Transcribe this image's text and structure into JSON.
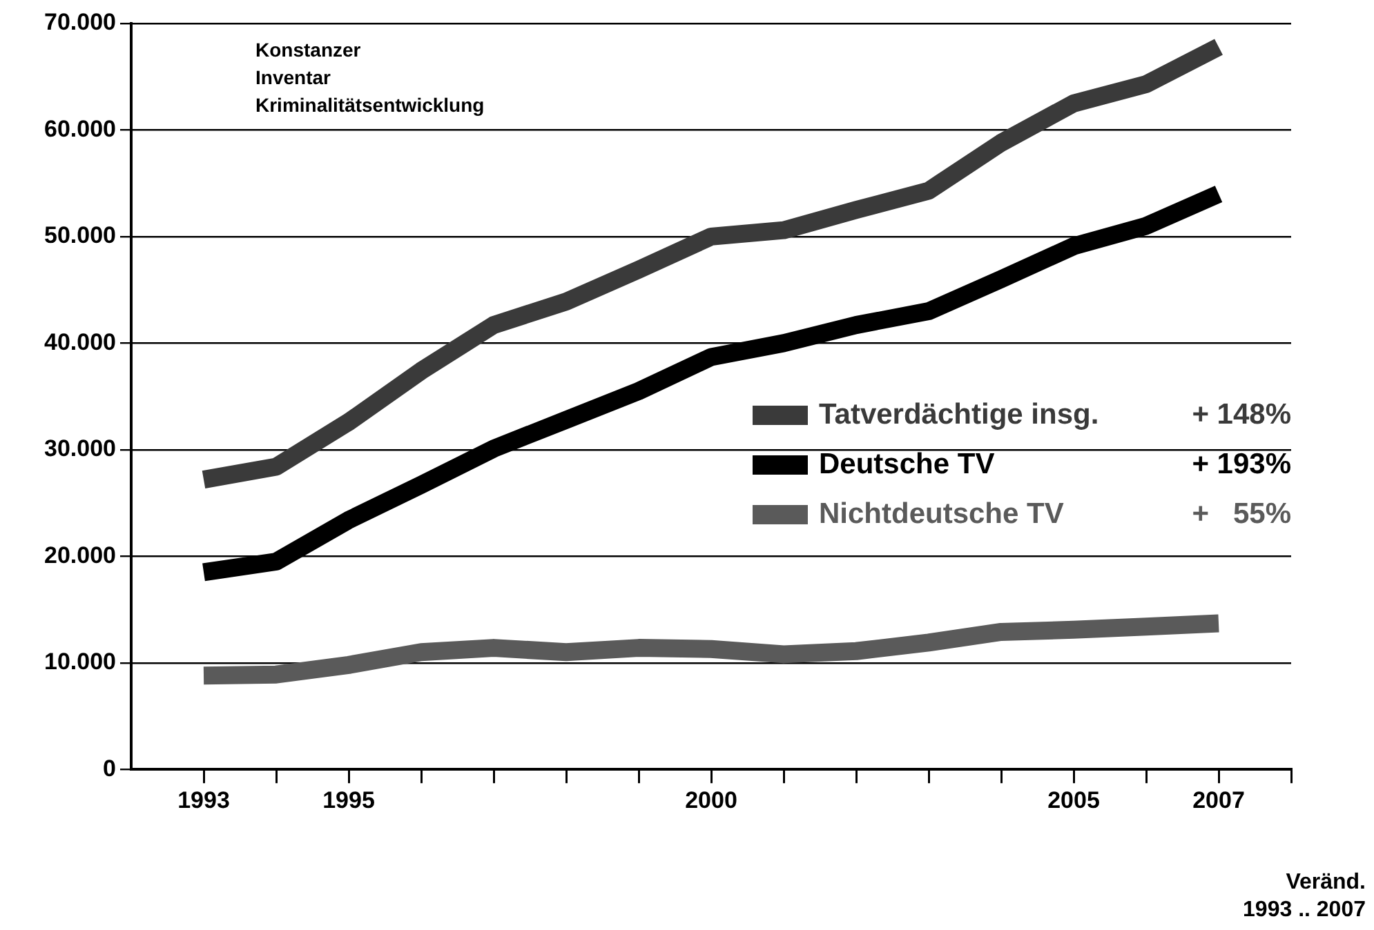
{
  "chart_data": {
    "type": "line",
    "x": [
      1993,
      1994,
      1995,
      1996,
      1997,
      1998,
      1999,
      2000,
      2001,
      2002,
      2003,
      2004,
      2005,
      2006,
      2007
    ],
    "series": [
      {
        "name": "Tatverdächtige insg.",
        "color": "#3a3a3a",
        "values": [
          27200,
          28400,
          32600,
          37400,
          41700,
          43900,
          46900,
          50000,
          50600,
          52500,
          54300,
          58800,
          62500,
          64300,
          67800
        ]
      },
      {
        "name": "Deutsche TV",
        "color": "#000000",
        "values": [
          18500,
          19500,
          23400,
          26700,
          30100,
          32800,
          35500,
          38700,
          40000,
          41700,
          43000,
          46000,
          49100,
          51000,
          54000
        ]
      },
      {
        "name": "Nichtdeutsche TV",
        "color": "#5a5a5a",
        "values": [
          8800,
          8900,
          9800,
          11000,
          11400,
          11000,
          11400,
          11300,
          10800,
          11100,
          11900,
          12900,
          13100,
          13400,
          13700
        ]
      }
    ],
    "xlim": [
      1992,
      2008
    ],
    "xticks": [
      {
        "value": 1993,
        "label": "1993"
      },
      {
        "value": 1994,
        "label": null
      },
      {
        "value": 1995,
        "label": "1995"
      },
      {
        "value": 1996,
        "label": null
      },
      {
        "value": 1997,
        "label": null
      },
      {
        "value": 1998,
        "label": null
      },
      {
        "value": 1999,
        "label": null
      },
      {
        "value": 2000,
        "label": "2000"
      },
      {
        "value": 2001,
        "label": null
      },
      {
        "value": 2002,
        "label": null
      },
      {
        "value": 2003,
        "label": null
      },
      {
        "value": 2004,
        "label": null
      },
      {
        "value": 2005,
        "label": "2005"
      },
      {
        "value": 2006,
        "label": null
      },
      {
        "value": 2007,
        "label": "2007"
      },
      {
        "value": 2008,
        "label": null
      }
    ],
    "ylim": [
      0,
      70000
    ],
    "yticks": [
      {
        "value": 0,
        "label": "0"
      },
      {
        "value": 10000,
        "label": "10.000"
      },
      {
        "value": 20000,
        "label": "20.000"
      },
      {
        "value": 30000,
        "label": "30.000"
      },
      {
        "value": 40000,
        "label": "40.000"
      },
      {
        "value": 50000,
        "label": "50.000"
      },
      {
        "value": 60000,
        "label": "60.000"
      },
      {
        "value": 70000,
        "label": "70.000"
      }
    ],
    "grid": "y",
    "legend": "right",
    "marker": "none",
    "line_style": "solid",
    "annotations": [
      "+ 148%",
      "+ 193%",
      "+   55%",
      "Veränd.",
      "1993 .. 2007",
      "Konstanzer",
      "Inventar",
      "Kriminalitätsentwicklung"
    ]
  }
}
